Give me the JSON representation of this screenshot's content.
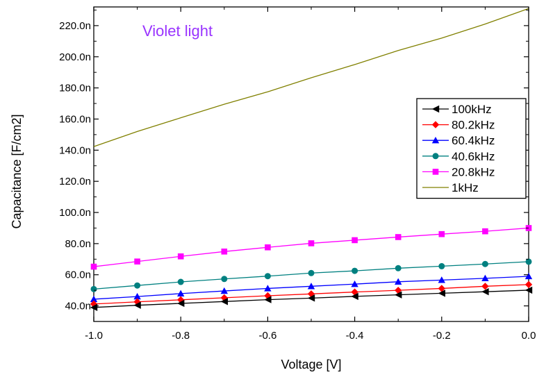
{
  "chart_data": {
    "type": "line",
    "title": "",
    "annotation": "Violet light",
    "xlabel": "Voltage [V]",
    "ylabel": "Capacitance [F/cm2]",
    "xlim": [
      -1.0,
      0.0
    ],
    "ylim": [
      30,
      232
    ],
    "x_ticks": [
      -1.0,
      -0.8,
      -0.6,
      -0.4,
      -0.2,
      0.0
    ],
    "x_tick_labels": [
      "-1.0",
      "-0.8",
      "-0.6",
      "-0.4",
      "-0.2",
      "0.0"
    ],
    "y_ticks": [
      40,
      60,
      80,
      100,
      120,
      140,
      160,
      180,
      200,
      220
    ],
    "y_tick_labels": [
      "40.0n",
      "60.0n",
      "80.0n",
      "100.0n",
      "120.0n",
      "140.0n",
      "160.0n",
      "180.0n",
      "200.0n",
      "220.0n"
    ],
    "y_unit": "nF/cm2",
    "grid": false,
    "legend_position": "right",
    "x": [
      -1.0,
      -0.9,
      -0.8,
      -0.7,
      -0.6,
      -0.5,
      -0.4,
      -0.3,
      -0.2,
      -0.1,
      0.0
    ],
    "series": [
      {
        "name": "100kHz",
        "color": "#000000",
        "marker": "triangle-left",
        "values": [
          39.0,
          40.4,
          41.6,
          42.8,
          44.0,
          45.0,
          46.1,
          47.1,
          48.1,
          49.1,
          50.1
        ]
      },
      {
        "name": "80.2kHz",
        "color": "#ff0000",
        "marker": "diamond",
        "values": [
          41.2,
          42.6,
          43.9,
          45.2,
          46.5,
          47.7,
          48.9,
          50.0,
          51.2,
          52.6,
          53.7
        ]
      },
      {
        "name": "60.4kHz",
        "color": "#0000ff",
        "marker": "triangle-up",
        "values": [
          44.3,
          46.0,
          47.9,
          49.6,
          51.2,
          52.6,
          54.0,
          55.5,
          56.6,
          57.7,
          59.0
        ]
      },
      {
        "name": "40.6kHz",
        "color": "#008080",
        "marker": "circle",
        "values": [
          50.8,
          53.1,
          55.4,
          57.3,
          59.1,
          61.1,
          62.5,
          64.2,
          65.5,
          66.9,
          68.4
        ]
      },
      {
        "name": "20.8kHz",
        "color": "#ff00ff",
        "marker": "square",
        "values": [
          65.2,
          68.5,
          71.8,
          74.9,
          77.6,
          80.2,
          82.2,
          84.2,
          86.1,
          87.9,
          90.0
        ]
      },
      {
        "name": "1kHz",
        "color": "#808000",
        "marker": "none",
        "values": [
          142.3,
          152.0,
          160.8,
          169.5,
          177.5,
          186.5,
          195.0,
          204.0,
          212.0,
          221.0,
          231.0
        ]
      }
    ],
    "colors": {
      "annotation": "#9933ff",
      "axis": "#000000"
    }
  }
}
